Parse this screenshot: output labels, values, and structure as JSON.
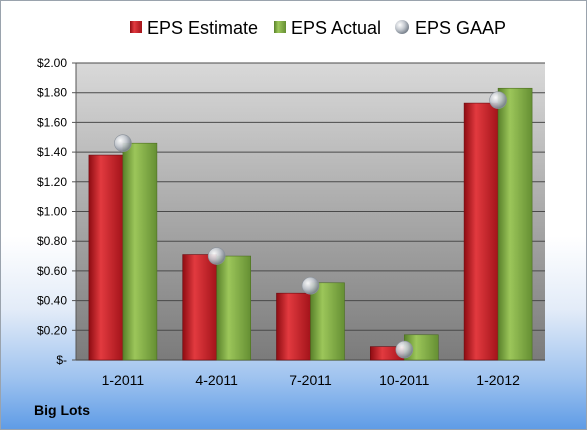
{
  "company": "Big Lots",
  "legend": {
    "estimate": "EPS Estimate",
    "actual": "EPS Actual",
    "gaap": "EPS GAAP"
  },
  "colors": {
    "estimate": "#c0141b",
    "actual": "#76a33a",
    "gaap": "#b8bec6"
  },
  "chart_data": {
    "type": "bar",
    "categories": [
      "1-2011",
      "4-2011",
      "7-2011",
      "10-2011",
      "1-2012"
    ],
    "series": [
      {
        "name": "EPS Estimate",
        "values": [
          1.38,
          0.71,
          0.45,
          0.09,
          1.73
        ]
      },
      {
        "name": "EPS Actual",
        "values": [
          1.46,
          0.7,
          0.52,
          0.17,
          1.83
        ]
      },
      {
        "name": "EPS GAAP",
        "values": [
          1.46,
          0.7,
          0.5,
          0.07,
          1.75
        ]
      }
    ],
    "yticks": [
      "$-",
      "$0.20",
      "$0.40",
      "$0.60",
      "$0.80",
      "$1.00",
      "$1.20",
      "$1.40",
      "$1.60",
      "$1.80",
      "$2.00"
    ],
    "ylim": [
      0,
      2.0
    ],
    "grid": true,
    "legend_position": "top"
  }
}
